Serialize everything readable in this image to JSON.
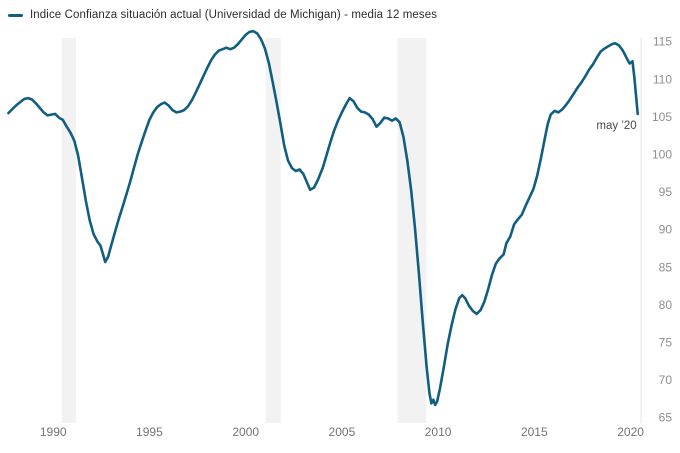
{
  "legend": {
    "label": "Indice Confianza situación actual (Universidad de Michigan) - media 12 meses",
    "swatch_color": "#115e80"
  },
  "chart_data": {
    "type": "line",
    "title": "Indice Confianza situación actual (Universidad de Michigan) - media 12 meses",
    "xlabel": "",
    "ylabel": "",
    "xlim": [
      1987.65,
      2020.75
    ],
    "ylim": [
      65,
      115
    ],
    "x_ticks": [
      1990,
      1995,
      2000,
      2005,
      2010,
      2015,
      2020
    ],
    "y_ticks": [
      65,
      70,
      75,
      80,
      85,
      90,
      95,
      100,
      105,
      110,
      115
    ],
    "grid": "none",
    "legend_position": "top-left",
    "band_color": "#f2f2f2",
    "recession_bands": [
      [
        1990.45,
        1991.18
      ],
      [
        2001.04,
        2001.82
      ],
      [
        2007.89,
        2009.39
      ]
    ],
    "annotation": {
      "text": "may ’20",
      "x": 2020.37,
      "y": 105.4
    },
    "series": [
      {
        "name": "Indice Confianza situación actual (Universidad de Michigan) - media 12 meses",
        "color": "#115e80",
        "points": [
          [
            1987.67,
            105.5
          ],
          [
            1987.9,
            106.1
          ],
          [
            1988.1,
            106.6
          ],
          [
            1988.3,
            107.0
          ],
          [
            1988.5,
            107.4
          ],
          [
            1988.7,
            107.5
          ],
          [
            1988.9,
            107.3
          ],
          [
            1989.1,
            106.8
          ],
          [
            1989.3,
            106.2
          ],
          [
            1989.5,
            105.6
          ],
          [
            1989.7,
            105.2
          ],
          [
            1989.9,
            105.3
          ],
          [
            1990.1,
            105.4
          ],
          [
            1990.3,
            104.9
          ],
          [
            1990.5,
            104.6
          ],
          [
            1990.7,
            103.7
          ],
          [
            1990.9,
            102.9
          ],
          [
            1991.1,
            101.8
          ],
          [
            1991.3,
            99.8
          ],
          [
            1991.5,
            96.8
          ],
          [
            1991.7,
            93.8
          ],
          [
            1991.9,
            91.2
          ],
          [
            1992.1,
            89.4
          ],
          [
            1992.3,
            88.4
          ],
          [
            1992.45,
            87.9
          ],
          [
            1992.6,
            86.6
          ],
          [
            1992.7,
            85.7
          ],
          [
            1992.85,
            86.4
          ],
          [
            1993.0,
            87.8
          ],
          [
            1993.2,
            89.6
          ],
          [
            1993.4,
            91.4
          ],
          [
            1993.6,
            93.0
          ],
          [
            1993.8,
            94.7
          ],
          [
            1994.0,
            96.4
          ],
          [
            1994.2,
            98.3
          ],
          [
            1994.4,
            100.1
          ],
          [
            1994.6,
            101.7
          ],
          [
            1994.8,
            103.2
          ],
          [
            1995.0,
            104.6
          ],
          [
            1995.2,
            105.6
          ],
          [
            1995.4,
            106.3
          ],
          [
            1995.6,
            106.7
          ],
          [
            1995.8,
            106.9
          ],
          [
            1996.0,
            106.5
          ],
          [
            1996.2,
            105.9
          ],
          [
            1996.4,
            105.6
          ],
          [
            1996.6,
            105.7
          ],
          [
            1996.8,
            105.9
          ],
          [
            1997.0,
            106.4
          ],
          [
            1997.2,
            107.2
          ],
          [
            1997.4,
            108.2
          ],
          [
            1997.6,
            109.3
          ],
          [
            1997.8,
            110.4
          ],
          [
            1998.0,
            111.5
          ],
          [
            1998.2,
            112.5
          ],
          [
            1998.4,
            113.3
          ],
          [
            1998.6,
            113.8
          ],
          [
            1998.8,
            114.0
          ],
          [
            1999.0,
            114.2
          ],
          [
            1999.2,
            114.0
          ],
          [
            1999.4,
            114.2
          ],
          [
            1999.6,
            114.7
          ],
          [
            1999.8,
            115.3
          ],
          [
            2000.0,
            115.9
          ],
          [
            2000.2,
            116.3
          ],
          [
            2000.4,
            116.4
          ],
          [
            2000.6,
            116.1
          ],
          [
            2000.8,
            115.3
          ],
          [
            2001.0,
            114.1
          ],
          [
            2001.2,
            112.2
          ],
          [
            2001.4,
            109.7
          ],
          [
            2001.6,
            107.0
          ],
          [
            2001.8,
            104.2
          ],
          [
            2002.0,
            101.2
          ],
          [
            2002.2,
            99.2
          ],
          [
            2002.4,
            98.2
          ],
          [
            2002.6,
            97.8
          ],
          [
            2002.8,
            98.0
          ],
          [
            2003.0,
            97.4
          ],
          [
            2003.2,
            96.2
          ],
          [
            2003.35,
            95.3
          ],
          [
            2003.55,
            95.6
          ],
          [
            2003.75,
            96.6
          ],
          [
            2004.0,
            98.2
          ],
          [
            2004.2,
            99.9
          ],
          [
            2004.4,
            101.6
          ],
          [
            2004.6,
            103.2
          ],
          [
            2004.8,
            104.5
          ],
          [
            2005.0,
            105.6
          ],
          [
            2005.2,
            106.6
          ],
          [
            2005.4,
            107.5
          ],
          [
            2005.6,
            107.1
          ],
          [
            2005.8,
            106.2
          ],
          [
            2006.0,
            105.7
          ],
          [
            2006.2,
            105.6
          ],
          [
            2006.4,
            105.3
          ],
          [
            2006.6,
            104.7
          ],
          [
            2006.8,
            103.7
          ],
          [
            2007.0,
            104.2
          ],
          [
            2007.2,
            104.9
          ],
          [
            2007.4,
            104.8
          ],
          [
            2007.6,
            104.5
          ],
          [
            2007.8,
            104.8
          ],
          [
            2008.0,
            104.3
          ],
          [
            2008.2,
            102.3
          ],
          [
            2008.4,
            99.2
          ],
          [
            2008.6,
            95.2
          ],
          [
            2008.8,
            90.2
          ],
          [
            2009.0,
            84.2
          ],
          [
            2009.2,
            77.8
          ],
          [
            2009.4,
            71.8
          ],
          [
            2009.55,
            68.2
          ],
          [
            2009.65,
            66.9
          ],
          [
            2009.75,
            67.4
          ],
          [
            2009.85,
            66.7
          ],
          [
            2009.95,
            67.2
          ],
          [
            2010.1,
            68.9
          ],
          [
            2010.3,
            71.8
          ],
          [
            2010.5,
            74.8
          ],
          [
            2010.7,
            77.3
          ],
          [
            2010.9,
            79.4
          ],
          [
            2011.1,
            80.9
          ],
          [
            2011.25,
            81.3
          ],
          [
            2011.4,
            80.9
          ],
          [
            2011.6,
            79.9
          ],
          [
            2011.8,
            79.2
          ],
          [
            2012.0,
            78.8
          ],
          [
            2012.2,
            79.3
          ],
          [
            2012.4,
            80.4
          ],
          [
            2012.6,
            82.1
          ],
          [
            2012.8,
            84.0
          ],
          [
            2013.0,
            85.5
          ],
          [
            2013.2,
            86.2
          ],
          [
            2013.4,
            86.7
          ],
          [
            2013.55,
            88.2
          ],
          [
            2013.75,
            89.1
          ],
          [
            2013.95,
            90.7
          ],
          [
            2014.15,
            91.4
          ],
          [
            2014.35,
            92.0
          ],
          [
            2014.55,
            93.2
          ],
          [
            2014.75,
            94.3
          ],
          [
            2014.95,
            95.4
          ],
          [
            2015.15,
            97.2
          ],
          [
            2015.35,
            99.6
          ],
          [
            2015.55,
            102.2
          ],
          [
            2015.7,
            104.1
          ],
          [
            2015.85,
            105.3
          ],
          [
            2016.05,
            105.8
          ],
          [
            2016.25,
            105.6
          ],
          [
            2016.45,
            106.0
          ],
          [
            2016.65,
            106.6
          ],
          [
            2016.85,
            107.3
          ],
          [
            2017.05,
            108.1
          ],
          [
            2017.25,
            108.9
          ],
          [
            2017.45,
            109.6
          ],
          [
            2017.65,
            110.4
          ],
          [
            2017.85,
            111.3
          ],
          [
            2018.05,
            112.0
          ],
          [
            2018.25,
            112.9
          ],
          [
            2018.45,
            113.7
          ],
          [
            2018.65,
            114.1
          ],
          [
            2018.85,
            114.4
          ],
          [
            2019.05,
            114.7
          ],
          [
            2019.2,
            114.8
          ],
          [
            2019.4,
            114.5
          ],
          [
            2019.6,
            113.8
          ],
          [
            2019.8,
            112.8
          ],
          [
            2019.95,
            112.1
          ],
          [
            2020.1,
            112.4
          ],
          [
            2020.2,
            110.2
          ],
          [
            2020.37,
            105.4
          ]
        ]
      }
    ]
  }
}
